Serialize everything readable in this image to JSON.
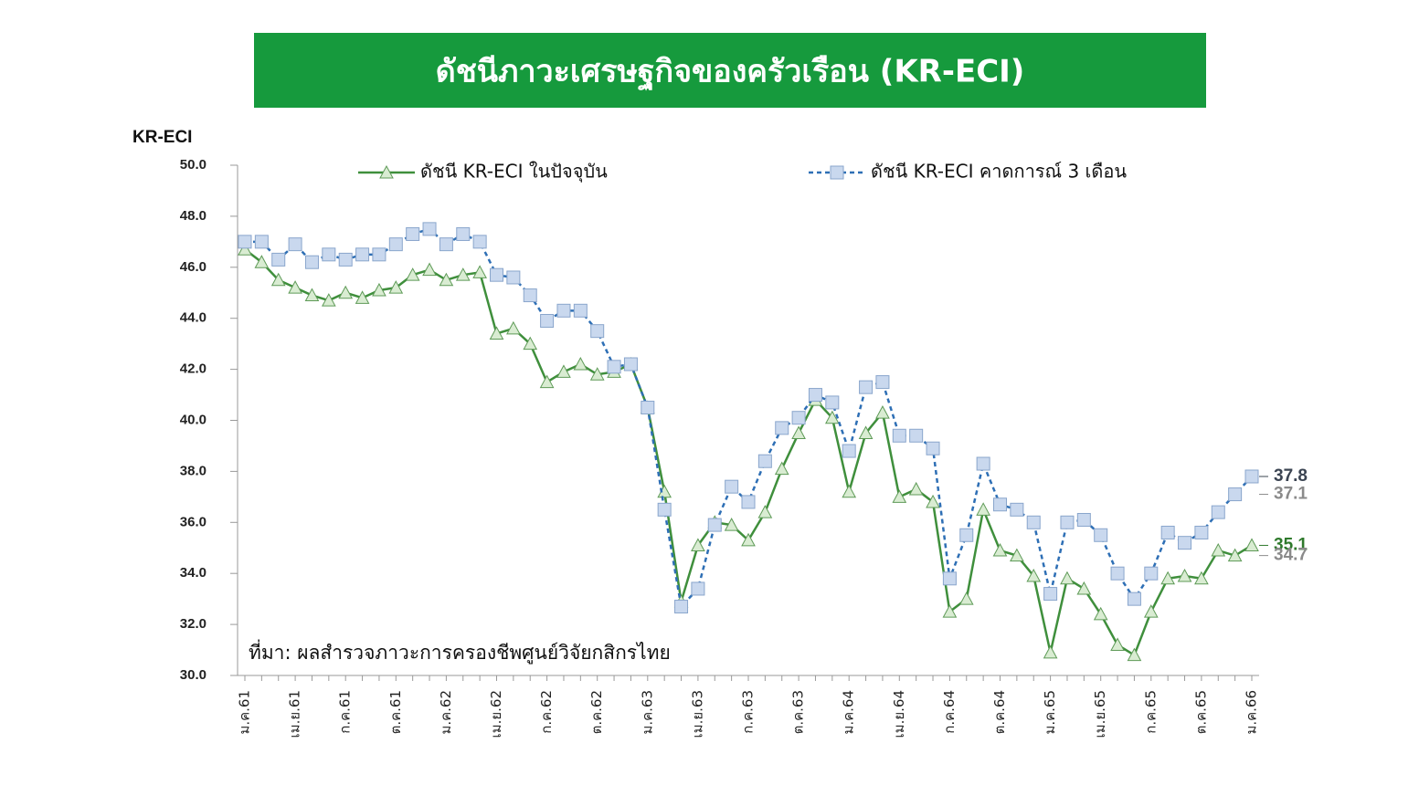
{
  "chart_data": {
    "type": "line",
    "title": "ดัชนีภาวะเศรษฐกิจของครัวเรือน (KR-ECI)",
    "y_label": "KR-ECI",
    "source": "ที่มา: ผลสำรวจภาวะการครองชีพศูนย์วิจัยกสิกรไทย",
    "categories": [
      "ม.ค.61",
      null,
      null,
      "เม.ย.61",
      null,
      null,
      "ก.ค.61",
      null,
      null,
      "ต.ค.61",
      null,
      null,
      "ม.ค.62",
      null,
      null,
      "เม.ย.62",
      null,
      null,
      "ก.ค.62",
      null,
      null,
      "ต.ค.62",
      null,
      null,
      "ม.ค.63",
      null,
      null,
      "เม.ย.63",
      null,
      null,
      "ก.ค.63",
      null,
      null,
      "ต.ค.63",
      null,
      null,
      "ม.ค.64",
      null,
      null,
      "เม.ย.64",
      null,
      null,
      "ก.ค.64",
      null,
      null,
      "ต.ค.64",
      null,
      null,
      "ม.ค.65",
      null,
      null,
      "เม.ย.65",
      null,
      null,
      "ก.ค.65",
      null,
      null,
      "ต.ค.65",
      null,
      null,
      "ม.ค.66"
    ],
    "series": [
      {
        "name": "ดัชนี KR-ECI ในปัจจุบัน",
        "color": "#3f8f3c",
        "marker": "triangle",
        "marker_fill": "#d9ecd2",
        "dashed": false,
        "values": [
          46.7,
          46.2,
          45.5,
          45.2,
          44.9,
          44.7,
          45.0,
          44.8,
          45.1,
          45.2,
          45.7,
          45.9,
          45.5,
          45.7,
          45.8,
          43.4,
          43.6,
          43.0,
          41.5,
          41.9,
          42.2,
          41.8,
          41.9,
          42.2,
          40.5,
          37.2,
          32.9,
          35.1,
          36.0,
          35.9,
          35.3,
          36.4,
          38.1,
          39.5,
          40.8,
          40.1,
          37.2,
          39.5,
          40.3,
          37.0,
          37.3,
          36.8,
          32.5,
          33.0,
          36.5,
          34.9,
          34.7,
          33.9,
          30.9,
          33.8,
          33.4,
          32.4,
          31.2,
          30.8,
          32.5,
          33.8,
          33.9,
          33.8,
          34.9,
          34.7,
          35.1
        ]
      },
      {
        "name": "ดัชนี KR-ECI คาดการณ์ 3 เดือน",
        "color": "#2e6fb5",
        "marker": "square",
        "marker_fill": "#c9d8ee",
        "dashed": true,
        "values": [
          47.0,
          47.0,
          46.3,
          46.9,
          46.2,
          46.5,
          46.3,
          46.5,
          46.5,
          46.9,
          47.3,
          47.5,
          46.9,
          47.3,
          47.0,
          45.7,
          45.6,
          44.9,
          43.9,
          44.3,
          44.3,
          43.5,
          42.1,
          42.2,
          40.5,
          36.5,
          32.7,
          33.4,
          35.9,
          37.4,
          36.8,
          38.4,
          39.7,
          40.1,
          41.0,
          40.7,
          38.8,
          41.3,
          41.5,
          39.4,
          39.4,
          38.9,
          33.8,
          35.5,
          38.3,
          36.7,
          36.5,
          36.0,
          33.2,
          36.0,
          36.1,
          35.5,
          34.0,
          33.0,
          34.0,
          35.6,
          35.2,
          35.6,
          36.4,
          37.1,
          37.8
        ]
      }
    ],
    "end_labels": [
      {
        "value": 37.8,
        "label": "37.8",
        "color": "#3b4452",
        "bold": true
      },
      {
        "value": 37.1,
        "label": "37.1",
        "color": "#8a8a8a",
        "bold": true
      },
      {
        "value": 35.1,
        "label": "35.1",
        "color": "#2f7a2c",
        "bold": true
      },
      {
        "value": 34.7,
        "label": "34.7",
        "color": "#8a8a8a",
        "bold": true
      }
    ],
    "ylim": [
      30,
      50
    ],
    "yticks": [
      {
        "value": 30,
        "label": "30.0"
      },
      {
        "value": 32,
        "label": "32.0"
      },
      {
        "value": 34,
        "label": "34.0"
      },
      {
        "value": 36,
        "label": "36.0"
      },
      {
        "value": 38,
        "label": "38.0"
      },
      {
        "value": 40,
        "label": "40.0"
      },
      {
        "value": 42,
        "label": "42.0"
      },
      {
        "value": 44,
        "label": "44.0"
      },
      {
        "value": 46,
        "label": "46.0"
      },
      {
        "value": 48,
        "label": "48.0"
      },
      {
        "value": 50,
        "label": "50.0"
      }
    ],
    "title_background": "#169a3d",
    "grid": false
  }
}
